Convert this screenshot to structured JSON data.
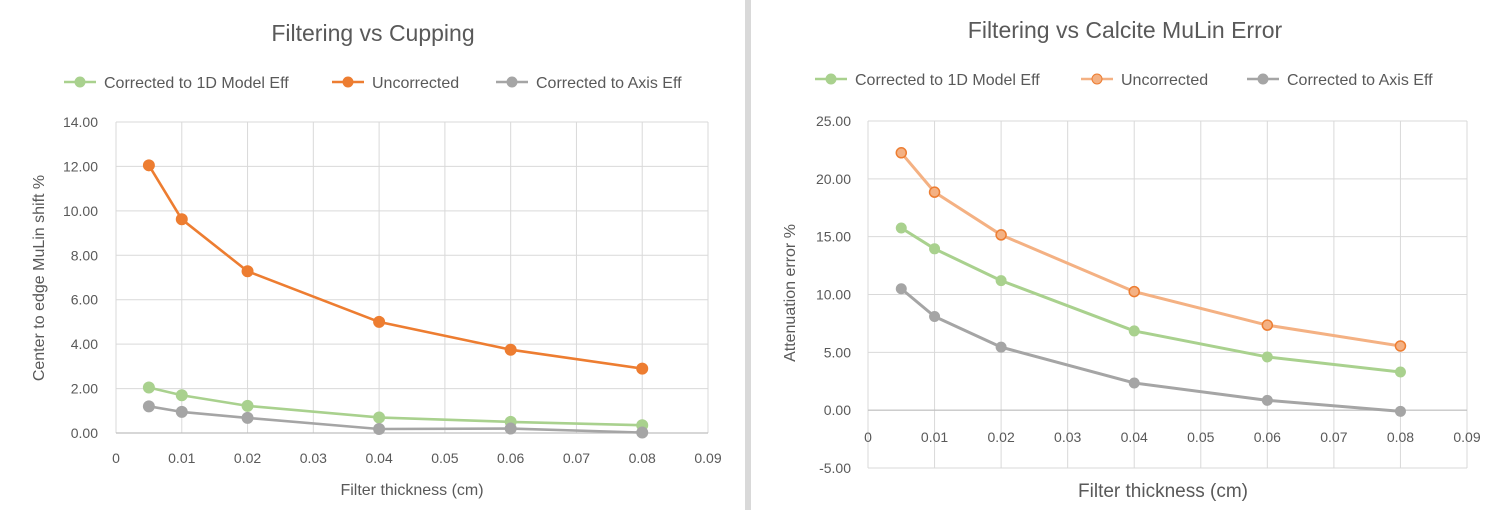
{
  "charts_meta": {
    "colors": {
      "green": "#A9D18E",
      "orange": "#ED7D31",
      "light_orange": "#F4B183",
      "gray": "#A5A5A5",
      "grid": "#d9d9d9",
      "text": "#595959"
    }
  },
  "chart_data": [
    {
      "type": "scatter",
      "title": "Filtering vs Cupping",
      "xlabel": "Filter thickness (cm)",
      "ylabel": "Center to edge MuLin shift %",
      "xlim": [
        0,
        0.09
      ],
      "ylim": [
        0,
        14
      ],
      "x_ticks": [
        "0",
        "0.01",
        "0.02",
        "0.03",
        "0.04",
        "0.05",
        "0.06",
        "0.07",
        "0.08",
        "0.09"
      ],
      "y_ticks": [
        "0.00",
        "2.00",
        "4.00",
        "6.00",
        "8.00",
        "10.00",
        "12.00",
        "14.00"
      ],
      "grid": true,
      "legend_position": "top",
      "series": [
        {
          "name": "Corrected to 1D Model Eff",
          "color": "#A9D18E",
          "x": [
            0.005,
            0.01,
            0.02,
            0.04,
            0.06,
            0.08
          ],
          "y": [
            2.05,
            1.7,
            1.22,
            0.7,
            0.5,
            0.35
          ]
        },
        {
          "name": "Uncorrected",
          "color": "#ED7D31",
          "x": [
            0.005,
            0.01,
            0.02,
            0.04,
            0.06,
            0.08
          ],
          "y": [
            12.05,
            9.62,
            7.28,
            5.0,
            3.75,
            2.9
          ]
        },
        {
          "name": "Corrected to Axis Eff",
          "color": "#A5A5A5",
          "x": [
            0.005,
            0.01,
            0.02,
            0.04,
            0.06,
            0.08
          ],
          "y": [
            1.2,
            0.95,
            0.68,
            0.18,
            0.2,
            0.02
          ]
        }
      ]
    },
    {
      "type": "scatter",
      "title": "Filtering vs Calcite MuLin Error",
      "xlabel": "Filter thickness (cm)",
      "ylabel": "Attenuation error %",
      "xlim": [
        0,
        0.09
      ],
      "ylim": [
        -5,
        25
      ],
      "x_ticks": [
        "0",
        "0.01",
        "0.02",
        "0.03",
        "0.04",
        "0.05",
        "0.06",
        "0.07",
        "0.08",
        "0.09"
      ],
      "y_ticks": [
        "-5.00",
        "0.00",
        "5.00",
        "10.00",
        "15.00",
        "20.00",
        "25.00"
      ],
      "grid": true,
      "legend_position": "top",
      "series": [
        {
          "name": "Corrected to 1D Model Eff",
          "color": "#A9D18E",
          "x": [
            0.005,
            0.01,
            0.02,
            0.04,
            0.06,
            0.08
          ],
          "y": [
            15.75,
            13.95,
            11.2,
            6.85,
            4.6,
            3.3
          ]
        },
        {
          "name": "Uncorrected",
          "color": "#F4B183",
          "x": [
            0.005,
            0.01,
            0.02,
            0.04,
            0.06,
            0.08
          ],
          "y": [
            22.25,
            18.85,
            15.15,
            10.25,
            7.35,
            5.55
          ]
        },
        {
          "name": "Corrected to Axis Eff",
          "color": "#A5A5A5",
          "x": [
            0.005,
            0.01,
            0.02,
            0.04,
            0.06,
            0.08
          ],
          "y": [
            10.5,
            8.1,
            5.45,
            2.35,
            0.85,
            -0.1
          ]
        }
      ]
    }
  ]
}
